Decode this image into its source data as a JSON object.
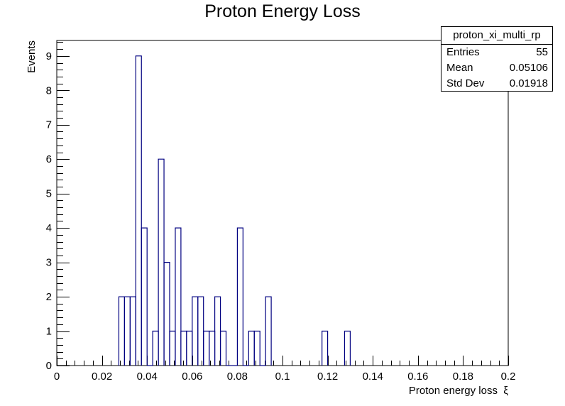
{
  "chart_data": {
    "type": "histogram",
    "title": "Proton Energy Loss",
    "xlabel": "Proton energy loss  ξ",
    "ylabel": "Events",
    "xlim": [
      0,
      0.2
    ],
    "ylim": [
      0,
      9.45
    ],
    "bin_width": 0.0025,
    "x_ticks": [
      "0",
      "0.02",
      "0.04",
      "0.06",
      "0.08",
      "0.1",
      "0.12",
      "0.14",
      "0.16",
      "0.18",
      "0.2"
    ],
    "y_ticks": [
      "0",
      "1",
      "2",
      "3",
      "4",
      "5",
      "6",
      "7",
      "8",
      "9"
    ],
    "bins": [
      {
        "x": 0.0275,
        "y": 2
      },
      {
        "x": 0.03,
        "y": 2
      },
      {
        "x": 0.0325,
        "y": 2
      },
      {
        "x": 0.035,
        "y": 9
      },
      {
        "x": 0.0375,
        "y": 4
      },
      {
        "x": 0.04,
        "y": 0
      },
      {
        "x": 0.0425,
        "y": 1
      },
      {
        "x": 0.045,
        "y": 6
      },
      {
        "x": 0.0475,
        "y": 3
      },
      {
        "x": 0.05,
        "y": 1
      },
      {
        "x": 0.0525,
        "y": 4
      },
      {
        "x": 0.055,
        "y": 1
      },
      {
        "x": 0.0575,
        "y": 1
      },
      {
        "x": 0.06,
        "y": 2
      },
      {
        "x": 0.0625,
        "y": 2
      },
      {
        "x": 0.065,
        "y": 1
      },
      {
        "x": 0.0675,
        "y": 1
      },
      {
        "x": 0.07,
        "y": 2
      },
      {
        "x": 0.0725,
        "y": 1
      },
      {
        "x": 0.075,
        "y": 0
      },
      {
        "x": 0.0775,
        "y": 0
      },
      {
        "x": 0.08,
        "y": 4
      },
      {
        "x": 0.0825,
        "y": 0
      },
      {
        "x": 0.085,
        "y": 1
      },
      {
        "x": 0.0875,
        "y": 1
      },
      {
        "x": 0.09,
        "y": 0
      },
      {
        "x": 0.0925,
        "y": 2
      },
      {
        "x": 0.1175,
        "y": 1
      },
      {
        "x": 0.1275,
        "y": 1
      }
    ],
    "line_color": "#000080"
  },
  "stats": {
    "name": "proton_xi_multi_rp",
    "entries_label": "Entries",
    "entries_value": "55",
    "mean_label": "Mean",
    "mean_value": "0.05106",
    "std_label": "Std Dev",
    "std_value": "0.01918"
  }
}
